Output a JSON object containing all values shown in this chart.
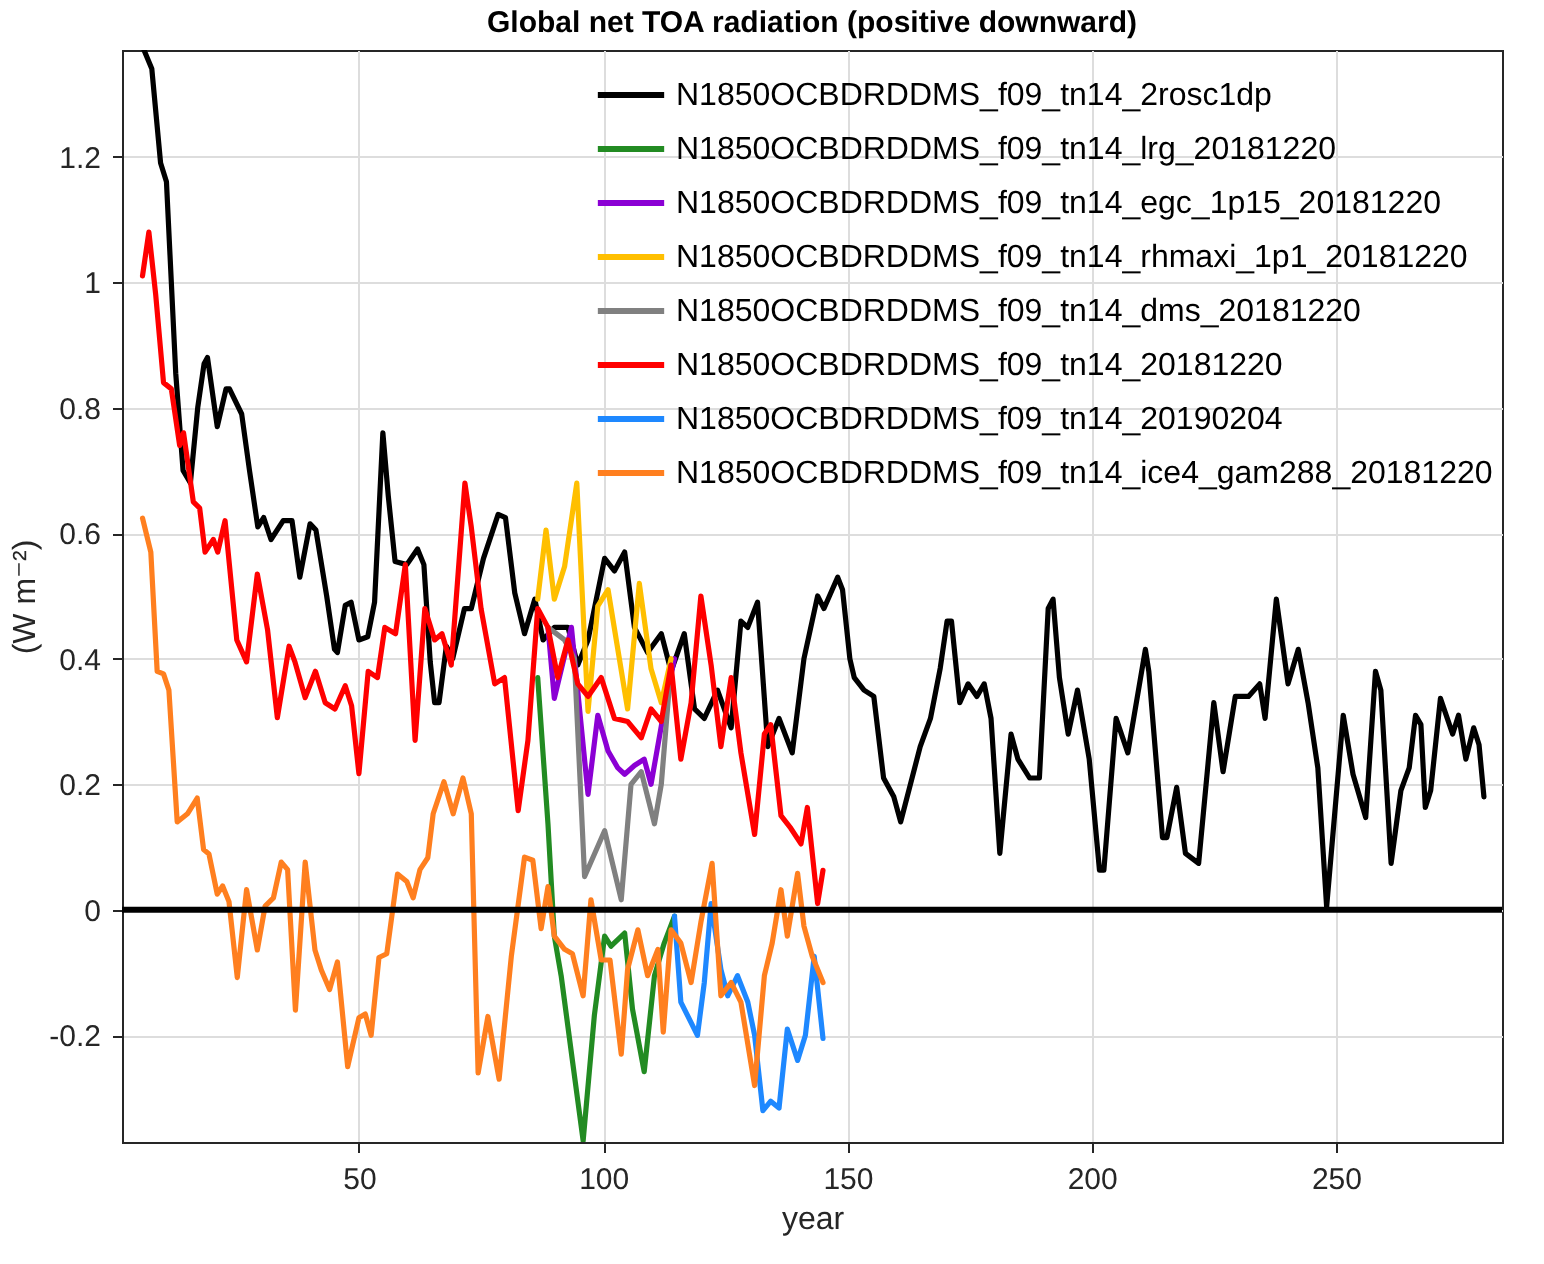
{
  "chart_data": {
    "type": "line",
    "title": "Global net TOA radiation (positive downward)",
    "xlabel": "year",
    "ylabel": "(W m⁻²)",
    "xlim": [
      1.5,
      284
    ],
    "xticks": [
      50,
      100,
      150,
      200,
      250
    ],
    "ylim": [
      -0.37,
      1.37
    ],
    "yticks": [
      -0.2,
      0,
      0.2,
      0.4,
      0.6,
      0.8,
      1,
      1.2
    ],
    "grid": true,
    "legend": "top right",
    "line_style": "solid",
    "ref_lines": [
      {
        "axis": "y",
        "value": 0,
        "color": "#000000"
      }
    ],
    "series": [
      {
        "name": "N1850OCBDRDDMS_f09_tn14_2rosc1dp",
        "color": "#000000",
        "x": [
          6,
          7.6,
          9.4,
          10.6,
          12.5,
          14,
          15.5,
          17,
          18.3,
          19,
          21,
          22.8,
          23.5,
          26,
          27.6,
          29.3,
          30.5,
          32,
          34.5,
          36.3,
          37.9,
          40,
          41.2,
          43.4,
          45,
          45.6,
          47.2,
          48.4,
          50,
          51.8,
          53.2,
          54.9,
          56,
          57.4,
          59.8,
          62,
          63.3,
          64.6,
          65.5,
          66.4,
          67.9,
          69.2,
          71.6,
          73,
          75.5,
          78.5,
          80,
          81.9,
          83.9,
          86,
          87.7,
          90,
          92.8,
          94.8,
          96.9,
          100.3,
          102.3,
          104.4,
          106.4,
          109.1,
          111.9,
          113.9,
          116.6,
          118.7,
          120.7,
          123.4,
          126.2,
          128.2,
          129.6,
          131.6,
          133.7,
          136,
          138.7,
          141.1,
          143.9,
          145.2,
          148,
          149,
          150.5,
          151.4,
          153.4,
          155.4,
          157.4,
          159.5,
          160.9,
          164.9,
          167,
          169,
          170.4,
          171.3,
          173,
          174.7,
          176.5,
          178,
          179.4,
          181.2,
          183.5,
          184.9,
          187.3,
          189.3,
          191.1,
          192.1,
          193.4,
          195.2,
          197.1,
          199.5,
          201.6,
          202.5,
          205,
          207.4,
          211,
          211.7,
          214.5,
          215.4,
          217.4,
          219.2,
          221.9,
          225,
          226.9,
          229.4,
          232.1,
          234.4,
          235.5,
          237.8,
          240.2,
          242.3,
          244.3,
          246.3,
          248.1,
          251.5,
          253.5,
          256.1,
          258.1,
          259.2,
          261.3,
          263.3,
          265,
          266.3,
          267.4,
          268.3,
          269.4,
          271.4,
          272.8,
          273.9,
          275.1,
          276.6,
          278.2,
          279.3,
          280.3
        ],
        "values": [
          1.37,
          1.34,
          1.19,
          1.16,
          0.855,
          0.7,
          0.68,
          0.8,
          0.87,
          0.88,
          0.77,
          0.83,
          0.83,
          0.79,
          0.7,
          0.61,
          0.625,
          0.59,
          0.62,
          0.62,
          0.53,
          0.615,
          0.605,
          0.5,
          0.415,
          0.41,
          0.485,
          0.49,
          0.43,
          0.435,
          0.49,
          0.76,
          0.66,
          0.555,
          0.55,
          0.575,
          0.55,
          0.395,
          0.33,
          0.33,
          0.42,
          0.4,
          0.48,
          0.48,
          0.56,
          0.63,
          0.625,
          0.505,
          0.44,
          0.495,
          0.43,
          0.45,
          0.45,
          0.39,
          0.43,
          0.56,
          0.54,
          0.57,
          0.45,
          0.41,
          0.44,
          0.38,
          0.44,
          0.32,
          0.305,
          0.35,
          0.29,
          0.46,
          0.45,
          0.49,
          0.26,
          0.305,
          0.25,
          0.4,
          0.5,
          0.48,
          0.53,
          0.51,
          0.4,
          0.37,
          0.35,
          0.34,
          0.21,
          0.18,
          0.14,
          0.26,
          0.305,
          0.385,
          0.46,
          0.46,
          0.33,
          0.36,
          0.34,
          0.36,
          0.305,
          0.09,
          0.28,
          0.24,
          0.21,
          0.21,
          0.48,
          0.495,
          0.37,
          0.28,
          0.35,
          0.24,
          0.063,
          0.063,
          0.305,
          0.25,
          0.415,
          0.38,
          0.115,
          0.115,
          0.195,
          0.09,
          0.074,
          0.33,
          0.22,
          0.34,
          0.34,
          0.36,
          0.305,
          0.495,
          0.36,
          0.415,
          0.33,
          0.226,
          0.005,
          0.31,
          0.216,
          0.147,
          0.38,
          0.35,
          0.074,
          0.19,
          0.226,
          0.31,
          0.295,
          0.163,
          0.19,
          0.337,
          0.305,
          0.28,
          0.31,
          0.24,
          0.29,
          0.263,
          0.18
        ]
      },
      {
        "name": "N1850OCBDRDDMS_f09_tn14_lrg_20181220",
        "color": "#228b22",
        "x": [
          86.6,
          88.7,
          90,
          91.4,
          93.7,
          95.9,
          98.2,
          100.3,
          101.6,
          104.4,
          106,
          108.4,
          110.5,
          112.5,
          114.6
        ],
        "values": [
          0.37,
          0.137,
          -0.042,
          -0.105,
          -0.24,
          -0.368,
          -0.168,
          -0.042,
          -0.058,
          -0.037,
          -0.158,
          -0.258,
          -0.105,
          -0.053,
          -0.01
        ]
      },
      {
        "name": "N1850OCBDRDDMS_f09_tn14_egc_1p15_20181220",
        "color": "#8b00d4",
        "x": [
          88.7,
          90,
          93.5,
          96.9,
          98.9,
          101,
          103,
          104.4,
          106.4,
          108.4,
          109.8,
          113.2,
          114.6
        ],
        "values": [
          0.45,
          0.337,
          0.45,
          0.184,
          0.31,
          0.253,
          0.226,
          0.216,
          0.23,
          0.24,
          0.2,
          0.35,
          0.4
        ]
      },
      {
        "name": "N1850OCBDRDDMS_f09_tn14_rhmaxi_1p1_20181220",
        "color": "#ffbf00",
        "x": [
          86.6,
          88.3,
          90,
          92.1,
          94.6,
          96.9,
          98.9,
          101,
          105,
          107.4,
          109.8,
          111.9,
          113.9
        ],
        "values": [
          0.495,
          0.605,
          0.495,
          0.547,
          0.68,
          0.316,
          0.484,
          0.51,
          0.32,
          0.52,
          0.384,
          0.33,
          0.4
        ]
      },
      {
        "name": "N1850OCBDRDDMS_f09_tn14_dms_20181220",
        "color": "#808080",
        "x": [
          88.7,
          92.1,
          94.1,
          96.2,
          100.3,
          103.7,
          105.7,
          107.8,
          110.5,
          111.9,
          113.9
        ],
        "values": [
          0.45,
          0.43,
          0.4,
          0.053,
          0.126,
          0.016,
          0.2,
          0.22,
          0.137,
          0.2,
          0.39
        ]
      },
      {
        "name": "N1850OCBDRDDMS_f09_tn14_20181220",
        "color": "#ff0000",
        "x": [
          5.7,
          7,
          8.4,
          10,
          11.6,
          13.3,
          14.1,
          16.1,
          17.4,
          18.5,
          20.2,
          21.1,
          22.6,
          25,
          27,
          29.2,
          31.3,
          33.3,
          35.7,
          36.9,
          39,
          41.1,
          43.1,
          45.1,
          47.2,
          48.5,
          50,
          51.9,
          53.8,
          55.3,
          57.5,
          59.5,
          61.5,
          63.5,
          65.5,
          67,
          68.9,
          71.7,
          73,
          75,
          77.8,
          79.8,
          82.6,
          84.6,
          86.6,
          88.7,
          90.7,
          92.8,
          94.8,
          96.9,
          99.6,
          102.3,
          105,
          107.8,
          109.8,
          111.9,
          113.9,
          115.9,
          118,
          120,
          122.1,
          124.1,
          126.2,
          128.2,
          131,
          133,
          134.3,
          136.4,
          138.4,
          140.5,
          141.8,
          143.9,
          145
        ],
        "values": [
          1.01,
          1.08,
          0.98,
          0.84,
          0.83,
          0.74,
          0.76,
          0.65,
          0.64,
          0.57,
          0.59,
          0.57,
          0.62,
          0.43,
          0.395,
          0.535,
          0.446,
          0.306,
          0.42,
          0.395,
          0.338,
          0.38,
          0.33,
          0.32,
          0.357,
          0.325,
          0.217,
          0.38,
          0.37,
          0.45,
          0.44,
          0.55,
          0.27,
          0.48,
          0.43,
          0.44,
          0.39,
          0.68,
          0.61,
          0.48,
          0.36,
          0.37,
          0.158,
          0.27,
          0.48,
          0.45,
          0.37,
          0.43,
          0.36,
          0.34,
          0.37,
          0.305,
          0.3,
          0.274,
          0.32,
          0.3,
          0.39,
          0.24,
          0.33,
          0.5,
          0.39,
          0.26,
          0.37,
          0.25,
          0.12,
          0.28,
          0.295,
          0.15,
          0.13,
          0.105,
          0.163,
          0.01,
          0.063
        ]
      },
      {
        "name": "N1850OCBDRDDMS_f09_tn14_20190204",
        "color": "#1e88ff",
        "x": [
          114.6,
          115.9,
          119.3,
          120.7,
          122.1,
          124.1,
          125.5,
          127.5,
          129.6,
          131,
          132.7,
          134.3,
          136,
          137.7,
          139.8,
          141.4,
          143.2,
          145
        ],
        "values": [
          -0.01,
          -0.147,
          -0.2,
          -0.116,
          0.01,
          -0.095,
          -0.137,
          -0.105,
          -0.147,
          -0.2,
          -0.32,
          -0.305,
          -0.316,
          -0.19,
          -0.24,
          -0.2,
          -0.074,
          -0.205
        ]
      },
      {
        "name": "N1850OCBDRDDMS_f09_tn14_ice4_gam288_20181220",
        "color": "#ff7f1f",
        "x": [
          5.7,
          7.4,
          8.7,
          10,
          11.1,
          12.8,
          14.9,
          16.9,
          18.2,
          19.3,
          21,
          22.1,
          23.4,
          25.1,
          27,
          29.2,
          30.8,
          32.5,
          34.1,
          35.4,
          37,
          39,
          41,
          42.3,
          44,
          45.6,
          47.7,
          50,
          51.3,
          52.5,
          54.1,
          55.7,
          57.9,
          59.8,
          61.1,
          62.5,
          64.1,
          65.2,
          67.4,
          69.3,
          71.3,
          73,
          74.4,
          76.4,
          78.7,
          81.2,
          83.9,
          85.6,
          87.3,
          88.7,
          90,
          92.1,
          93.7,
          95.9,
          97.5,
          99.6,
          101.4,
          103.7,
          105,
          107.1,
          109.1,
          111.2,
          112.3,
          113.9,
          115.9,
          118,
          120,
          122.3,
          124.1,
          126.2,
          128.2,
          131,
          133,
          134.6,
          136.4,
          137.7,
          139.8,
          141.1,
          142.8,
          145
        ],
        "values": [
          0.624,
          0.57,
          0.38,
          0.376,
          0.35,
          0.14,
          0.153,
          0.178,
          0.096,
          0.089,
          0.025,
          0.038,
          0.013,
          -0.108,
          0.032,
          -0.064,
          0.006,
          0.019,
          0.076,
          0.064,
          -0.16,
          0.076,
          -0.064,
          -0.096,
          -0.127,
          -0.083,
          -0.25,
          -0.172,
          -0.166,
          -0.2,
          -0.076,
          -0.07,
          0.057,
          0.045,
          0.019,
          0.064,
          0.083,
          0.153,
          0.204,
          0.153,
          0.21,
          0.153,
          -0.26,
          -0.17,
          -0.27,
          -0.074,
          0.084,
          0.079,
          -0.03,
          0.037,
          -0.042,
          -0.063,
          -0.07,
          -0.137,
          0.016,
          -0.08,
          -0.08,
          -0.23,
          -0.095,
          -0.032,
          -0.105,
          -0.063,
          -0.195,
          -0.032,
          -0.053,
          -0.116,
          -0.02,
          0.074,
          -0.137,
          -0.116,
          -0.147,
          -0.28,
          -0.105,
          -0.053,
          0.032,
          -0.042,
          0.058,
          -0.026,
          -0.074,
          -0.116
        ]
      }
    ]
  }
}
